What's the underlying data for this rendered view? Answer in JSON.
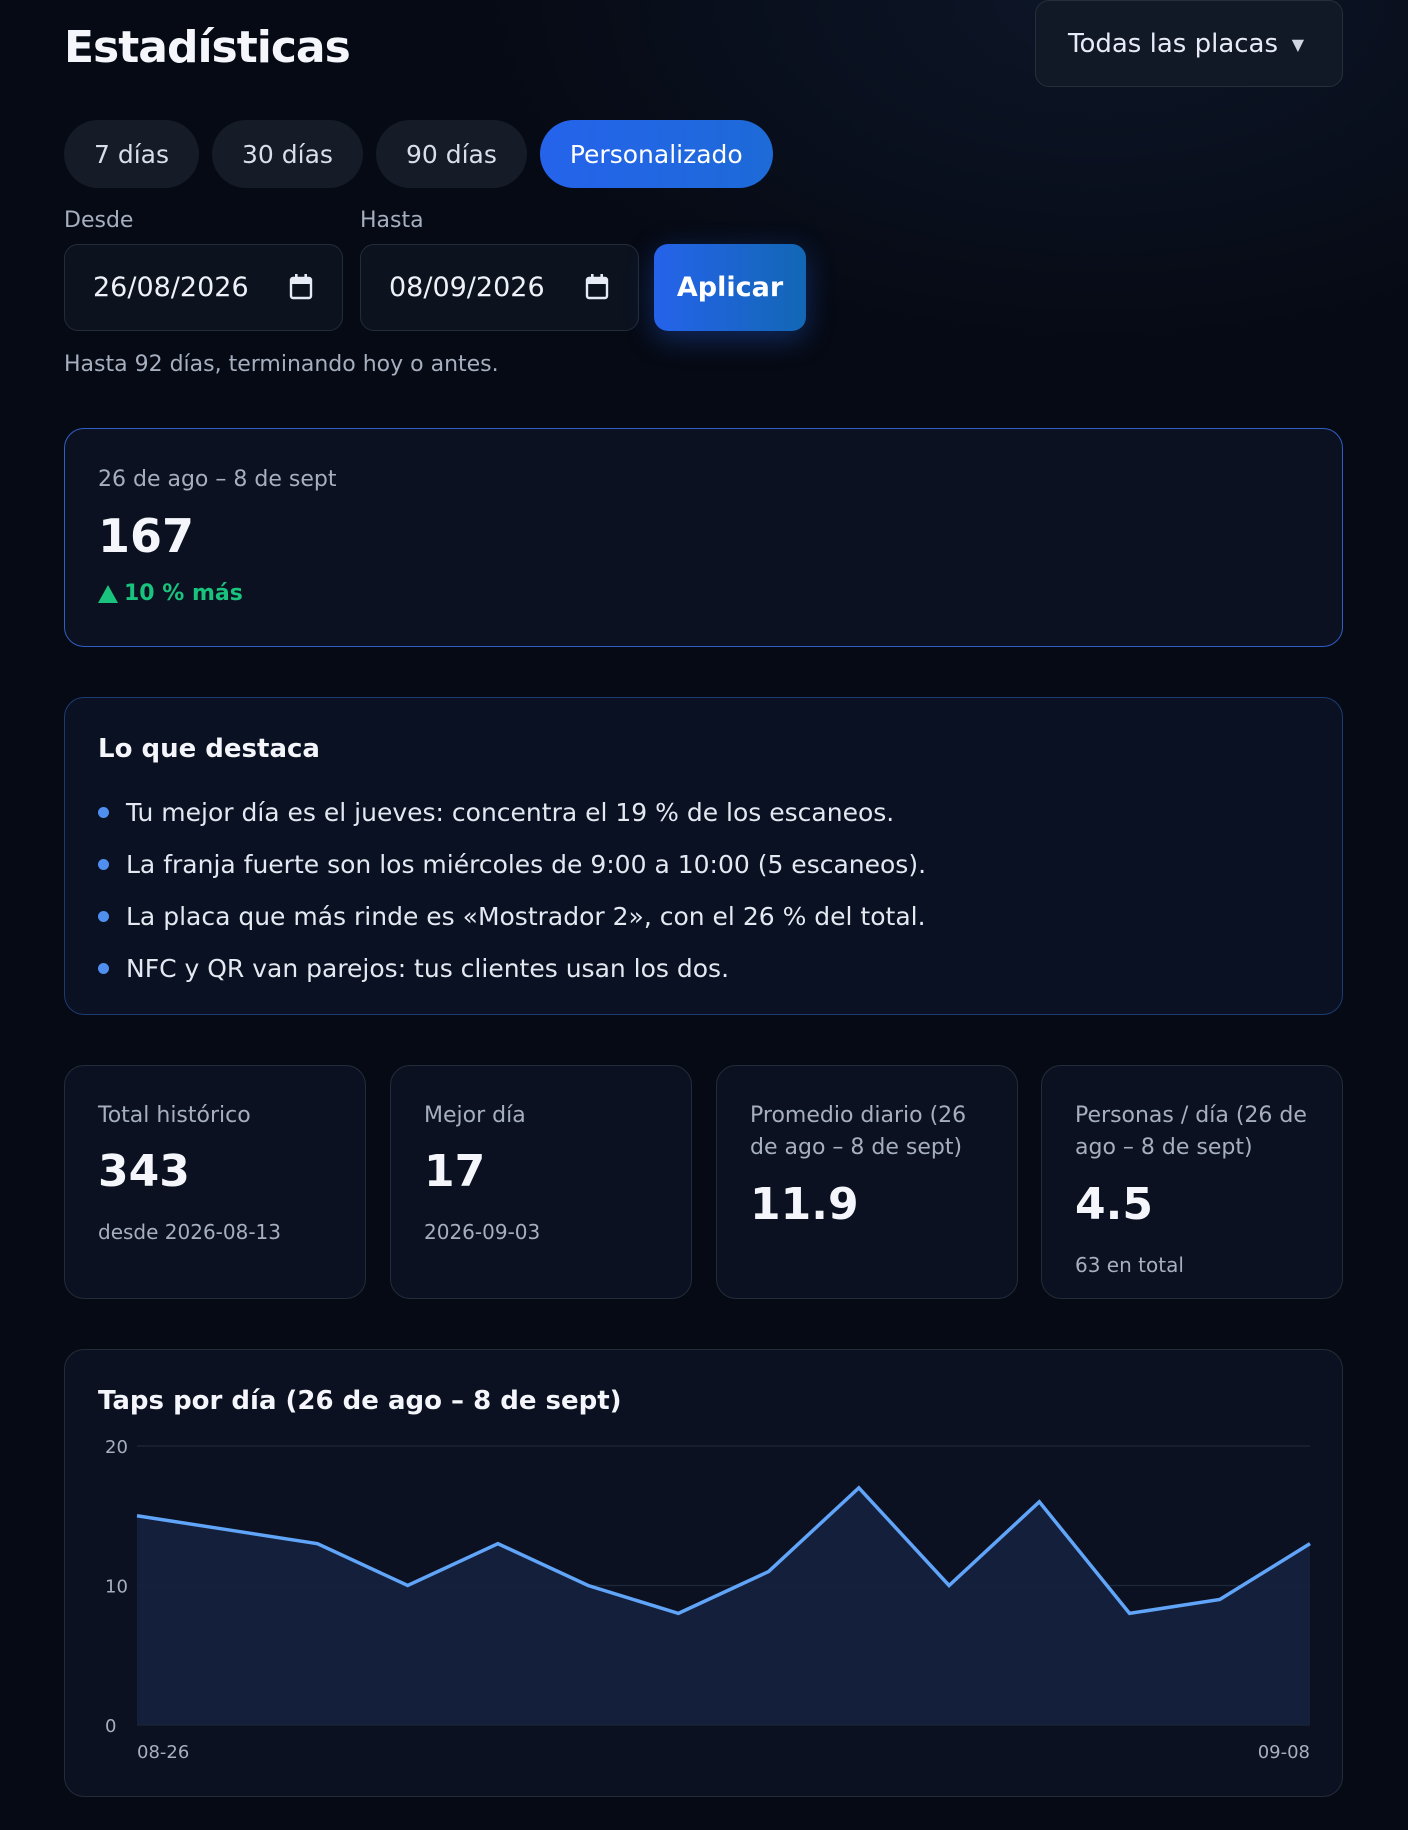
{
  "header": {
    "title": "Estadísticas",
    "plate_filter": "Todas las placas"
  },
  "ranges": [
    {
      "label": "7 días",
      "active": false
    },
    {
      "label": "30 días",
      "active": false
    },
    {
      "label": "90 días",
      "active": false
    },
    {
      "label": "Personalizado",
      "active": true
    }
  ],
  "date_range": {
    "from_label": "Desde",
    "from_value": "26/08/2026",
    "to_label": "Hasta",
    "to_value": "08/09/2026",
    "apply_label": "Aplicar",
    "hint": "Hasta 92 días, terminando hoy o antes."
  },
  "summary": {
    "period": "26 de ago – 8 de sept",
    "value": "167",
    "delta": "10 % más",
    "delta_color": "#19c37d"
  },
  "highlights": {
    "title": "Lo que destaca",
    "items": [
      "Tu mejor día es el jueves: concentra el 19 % de los escaneos.",
      "La franja fuerte son los miércoles de 9:00 a 10:00 (5 escaneos).",
      "La placa que más rinde es «Mostrador 2», con el 26 % del total.",
      "NFC y QR van parejos: tus clientes usan los dos."
    ]
  },
  "stats": [
    {
      "label": "Total histórico",
      "value": "343",
      "sub": "desde 2026-08-13"
    },
    {
      "label": "Mejor día",
      "value": "17",
      "sub": "2026-09-03"
    },
    {
      "label": "Promedio diario (26 de ago – 8 de sept)",
      "value": "11.9",
      "sub": ""
    },
    {
      "label": "Personas / día (26 de ago – 8 de sept)",
      "value": "4.5",
      "sub": "63 en total"
    }
  ],
  "chart_title": "Taps por día (26 de ago – 8 de sept)",
  "chart_data": {
    "type": "area",
    "title": "Taps por día (26 de ago – 8 de sept)",
    "x": [
      "08-26",
      "08-27",
      "08-28",
      "08-29",
      "08-30",
      "08-31",
      "09-01",
      "09-02",
      "09-03",
      "09-04",
      "09-05",
      "09-06",
      "09-07",
      "09-08"
    ],
    "values": [
      15,
      14,
      13,
      10,
      13,
      10,
      8,
      11,
      17,
      10,
      16,
      8,
      9,
      13
    ],
    "x_tick_labels": [
      "08-26",
      "09-08"
    ],
    "y_ticks": [
      "0",
      "10",
      "20"
    ],
    "ylim": [
      0,
      20
    ],
    "grid": true,
    "line_color": "#60a5fa",
    "fill_color": "#15223d"
  },
  "colors": {
    "accent": "#2563eb",
    "card_border": "#2f5fc4",
    "positive": "#19c37d"
  }
}
